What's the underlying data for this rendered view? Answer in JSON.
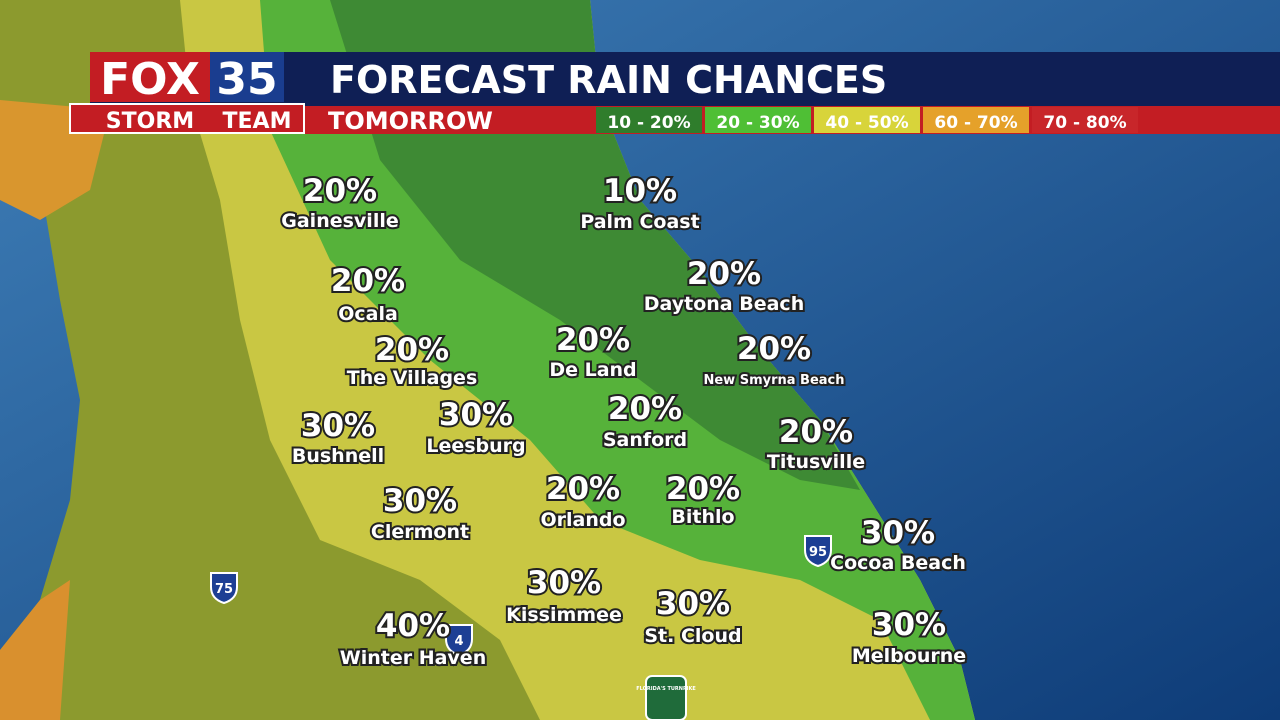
{
  "header": {
    "logo_fox": "FOX",
    "logo_number": "35",
    "logo_storm": "STORM",
    "logo_team": "TEAM",
    "title": "FORECAST RAIN CHANCES",
    "subtitle": "TOMORROW"
  },
  "legend": [
    {
      "label": "10 - 20%",
      "color": "#2f7d2c"
    },
    {
      "label": "20 - 30%",
      "color": "#4fbf35"
    },
    {
      "label": "40 - 50%",
      "color": "#d8d43a"
    },
    {
      "label": "60 - 70%",
      "color": "#e5a12a"
    },
    {
      "label": "70 - 80%",
      "color": "#c8262a"
    }
  ],
  "cities": [
    {
      "name": "Gainesville",
      "chance": "20%"
    },
    {
      "name": "Palm Coast",
      "chance": "10%"
    },
    {
      "name": "Ocala",
      "chance": "20%"
    },
    {
      "name": "Daytona Beach",
      "chance": "20%"
    },
    {
      "name": "The Villages",
      "chance": "20%"
    },
    {
      "name": "De Land",
      "chance": "20%"
    },
    {
      "name": "New Smyrna Beach",
      "chance": "20%"
    },
    {
      "name": "Bushnell",
      "chance": "30%"
    },
    {
      "name": "Leesburg",
      "chance": "30%"
    },
    {
      "name": "Sanford",
      "chance": "20%"
    },
    {
      "name": "Titusville",
      "chance": "20%"
    },
    {
      "name": "Clermont",
      "chance": "30%"
    },
    {
      "name": "Orlando",
      "chance": "20%"
    },
    {
      "name": "Bithlo",
      "chance": "20%"
    },
    {
      "name": "Cocoa Beach",
      "chance": "30%"
    },
    {
      "name": "Kissimmee",
      "chance": "30%"
    },
    {
      "name": "St. Cloud",
      "chance": "30%"
    },
    {
      "name": "Melbourne",
      "chance": "30%"
    },
    {
      "name": "Winter Haven",
      "chance": "40%"
    }
  ],
  "shields": [
    "75",
    "95",
    "4"
  ],
  "turnpike": "FLORIDA'S TURNPIKE"
}
